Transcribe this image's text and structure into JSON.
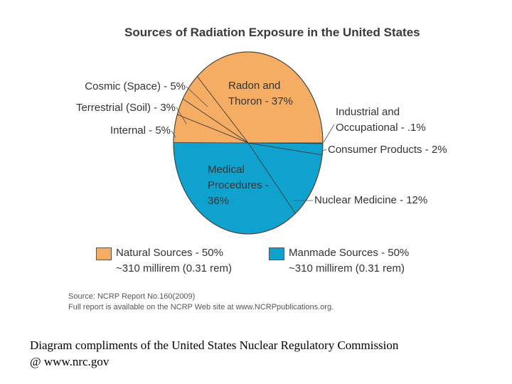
{
  "chart_data": {
    "type": "pie",
    "title": "Sources of Radiation Exposure in the United States",
    "slices": [
      {
        "label": "Radon and",
        "label2": "Thoron - 37%",
        "value": 37,
        "group": "natural"
      },
      {
        "label": "Cosmic (Space) - 5%",
        "value": 5,
        "group": "natural"
      },
      {
        "label": "Terrestrial (Soil) - 3%",
        "value": 3,
        "group": "natural"
      },
      {
        "label": "Internal - 5%",
        "value": 5,
        "group": "natural"
      },
      {
        "label": "Medical",
        "label2": "Procedures -",
        "label3": "36%",
        "value": 36,
        "group": "manmade"
      },
      {
        "label": "Nuclear Medicine - 12%",
        "value": 12,
        "group": "manmade"
      },
      {
        "label": "Consumer Products - 2%",
        "value": 2,
        "group": "manmade"
      },
      {
        "label": "Industrial and",
        "label2": "Occupational - .1%",
        "value": 0.1,
        "group": "manmade"
      }
    ],
    "legend": [
      {
        "label": "Natural Sources - 50%",
        "sub": "~310 millirem (0.31 rem)",
        "color": "#f4ad62"
      },
      {
        "label": "Manmade Sources - 50%",
        "sub": "~310 millirem (0.31 rem)",
        "color": "#0fa2ce"
      }
    ]
  },
  "colors": {
    "natural": "#f4ad62",
    "manmade": "#0fa2ce",
    "outline": "#3b3b3b"
  },
  "source": {
    "line1": "Source: NCRP Report No.160(2009)",
    "line2": "Full report is available on the NCRP Web site at www.NCRPpublications.org."
  },
  "credit": {
    "line1": "Diagram compliments of the United States Nuclear Regulatory Commission",
    "line2": "@ www.nrc.gov"
  }
}
